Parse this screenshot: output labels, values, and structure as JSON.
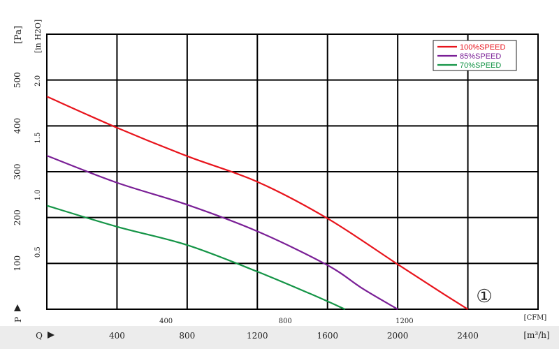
{
  "chart_data": {
    "type": "line",
    "colors": {
      "red": "#e8141c",
      "purple": "#7a1f96",
      "green": "#149446"
    },
    "x_primary": {
      "unit_label": "[m³/h]",
      "ticks": [
        400,
        800,
        1200,
        1600,
        2000,
        2400
      ],
      "range": [
        0,
        2800
      ],
      "marker": "Q"
    },
    "x_secondary": {
      "unit_label": "[CFM]",
      "ticks": [
        400,
        800,
        1200
      ]
    },
    "y_primary": {
      "unit_label": "[Pa]",
      "ticks": [
        100,
        200,
        300,
        400,
        500
      ],
      "range": [
        0,
        600
      ],
      "marker": "P"
    },
    "y_secondary": {
      "unit_label": "[in H2O]",
      "ticks": [
        "0.5",
        "1.0",
        "1.5",
        "2.0"
      ]
    },
    "annotation": "①",
    "grid": true,
    "legend_position": "top-right",
    "series": [
      {
        "name": "100%SPEED",
        "color": "#e8141c",
        "points": [
          [
            0,
            464
          ],
          [
            400,
            396
          ],
          [
            800,
            334
          ],
          [
            1200,
            278
          ],
          [
            1600,
            198
          ],
          [
            2000,
            98
          ],
          [
            2250,
            36
          ],
          [
            2400,
            0
          ]
        ]
      },
      {
        "name": "85%SPEED",
        "color": "#7a1f96",
        "points": [
          [
            0,
            335
          ],
          [
            400,
            276
          ],
          [
            800,
            228
          ],
          [
            1200,
            170
          ],
          [
            1600,
            96
          ],
          [
            1800,
            45
          ],
          [
            2000,
            0
          ]
        ]
      },
      {
        "name": "70%SPEED",
        "color": "#149446",
        "points": [
          [
            0,
            226
          ],
          [
            400,
            180
          ],
          [
            800,
            140
          ],
          [
            1200,
            82
          ],
          [
            1500,
            34
          ],
          [
            1700,
            0
          ]
        ]
      }
    ]
  }
}
